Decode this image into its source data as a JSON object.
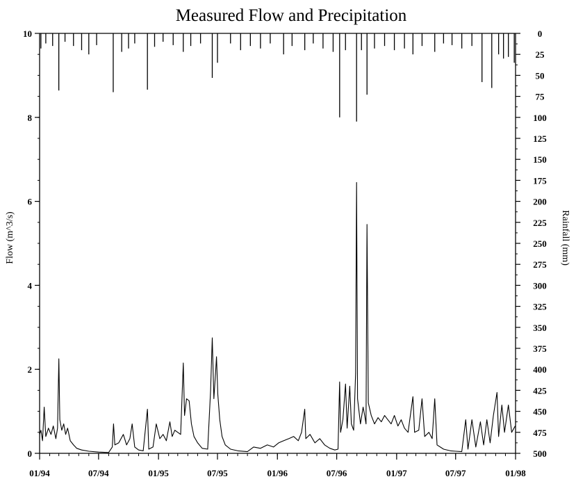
{
  "chart_data": {
    "type": "line",
    "title": "Measured Flow and Precipitation",
    "ylabel": "Flow (m^3/s)",
    "y2label": "Rainfall (mm)",
    "ylim": [
      0,
      10
    ],
    "y2lim": [
      0,
      500
    ],
    "y2_inverted": true,
    "xlim": [
      "1994-01-01",
      "1998-01-01"
    ],
    "grid": false,
    "legend": "none",
    "colors": {
      "line": "#000000",
      "bars": "#000000",
      "background": "#ffffff"
    },
    "x_ticks": [
      {
        "date": "1994-01-01",
        "label": "01/94"
      },
      {
        "date": "1994-07-01",
        "label": "07/94"
      },
      {
        "date": "1995-01-01",
        "label": "01/95"
      },
      {
        "date": "1995-07-01",
        "label": "07/95"
      },
      {
        "date": "1996-01-01",
        "label": "01/96"
      },
      {
        "date": "1996-07-01",
        "label": "07/96"
      },
      {
        "date": "1997-01-01",
        "label": "01/97"
      },
      {
        "date": "1997-07-01",
        "label": "07/97"
      },
      {
        "date": "1998-01-01",
        "label": "01/98"
      }
    ],
    "y_ticks": [
      "0",
      "2",
      "4",
      "6",
      "8",
      "10"
    ],
    "y2_ticks": [
      "0",
      "25",
      "50",
      "75",
      "100",
      "125",
      "150",
      "175",
      "200",
      "225",
      "250",
      "275",
      "300",
      "325",
      "350",
      "375",
      "400",
      "425",
      "450",
      "475",
      "500"
    ],
    "series": [
      {
        "name": "Flow",
        "kind": "line",
        "axis": "left",
        "units": "m^3/s",
        "points": [
          [
            "1994-01-01",
            0.45
          ],
          [
            "1994-01-05",
            0.55
          ],
          [
            "1994-01-10",
            0.3
          ],
          [
            "1994-01-15",
            1.1
          ],
          [
            "1994-01-20",
            0.4
          ],
          [
            "1994-01-28",
            0.6
          ],
          [
            "1994-02-05",
            0.45
          ],
          [
            "1994-02-12",
            0.65
          ],
          [
            "1994-02-20",
            0.35
          ],
          [
            "1994-02-25",
            0.6
          ],
          [
            "1994-03-01",
            2.25
          ],
          [
            "1994-03-04",
            0.8
          ],
          [
            "1994-03-10",
            0.55
          ],
          [
            "1994-03-16",
            0.7
          ],
          [
            "1994-03-22",
            0.45
          ],
          [
            "1994-03-28",
            0.6
          ],
          [
            "1994-04-05",
            0.3
          ],
          [
            "1994-04-15",
            0.2
          ],
          [
            "1994-04-25",
            0.12
          ],
          [
            "1994-05-10",
            0.08
          ],
          [
            "1994-06-01",
            0.05
          ],
          [
            "1994-07-01",
            0.03
          ],
          [
            "1994-08-01",
            0.02
          ],
          [
            "1994-08-12",
            0.15
          ],
          [
            "1994-08-16",
            0.7
          ],
          [
            "1994-08-20",
            0.2
          ],
          [
            "1994-09-01",
            0.25
          ],
          [
            "1994-09-15",
            0.45
          ],
          [
            "1994-09-25",
            0.2
          ],
          [
            "1994-10-05",
            0.35
          ],
          [
            "1994-10-12",
            0.7
          ],
          [
            "1994-10-20",
            0.15
          ],
          [
            "1994-11-01",
            0.08
          ],
          [
            "1994-11-15",
            0.06
          ],
          [
            "1994-11-28",
            1.05
          ],
          [
            "1994-12-02",
            0.1
          ],
          [
            "1994-12-15",
            0.15
          ],
          [
            "1994-12-25",
            0.7
          ],
          [
            "1995-01-05",
            0.35
          ],
          [
            "1995-01-15",
            0.45
          ],
          [
            "1995-01-25",
            0.3
          ],
          [
            "1995-02-05",
            0.75
          ],
          [
            "1995-02-12",
            0.4
          ],
          [
            "1995-02-20",
            0.55
          ],
          [
            "1995-03-01",
            0.5
          ],
          [
            "1995-03-10",
            0.45
          ],
          [
            "1995-03-18",
            2.15
          ],
          [
            "1995-03-22",
            0.9
          ],
          [
            "1995-03-28",
            1.3
          ],
          [
            "1995-04-05",
            1.25
          ],
          [
            "1995-04-12",
            0.7
          ],
          [
            "1995-04-20",
            0.4
          ],
          [
            "1995-05-01",
            0.25
          ],
          [
            "1995-05-15",
            0.12
          ],
          [
            "1995-06-01",
            0.1
          ],
          [
            "1995-06-10",
            1.5
          ],
          [
            "1995-06-15",
            2.75
          ],
          [
            "1995-06-20",
            1.3
          ],
          [
            "1995-06-25",
            1.9
          ],
          [
            "1995-06-28",
            2.3
          ],
          [
            "1995-07-02",
            1.4
          ],
          [
            "1995-07-08",
            0.8
          ],
          [
            "1995-07-15",
            0.4
          ],
          [
            "1995-07-25",
            0.2
          ],
          [
            "1995-08-10",
            0.1
          ],
          [
            "1995-09-01",
            0.06
          ],
          [
            "1995-10-01",
            0.04
          ],
          [
            "1995-10-20",
            0.15
          ],
          [
            "1995-11-10",
            0.12
          ],
          [
            "1995-12-01",
            0.2
          ],
          [
            "1995-12-20",
            0.15
          ],
          [
            "1996-01-05",
            0.25
          ],
          [
            "1996-01-20",
            0.3
          ],
          [
            "1996-02-05",
            0.35
          ],
          [
            "1996-02-20",
            0.4
          ],
          [
            "1996-03-05",
            0.3
          ],
          [
            "1996-03-15",
            0.5
          ],
          [
            "1996-03-25",
            1.05
          ],
          [
            "1996-03-28",
            0.35
          ],
          [
            "1996-04-10",
            0.45
          ],
          [
            "1996-04-25",
            0.25
          ],
          [
            "1996-05-10",
            0.35
          ],
          [
            "1996-05-25",
            0.2
          ],
          [
            "1996-06-10",
            0.12
          ],
          [
            "1996-06-25",
            0.08
          ],
          [
            "1996-07-05",
            0.1
          ],
          [
            "1996-07-10",
            1.7
          ],
          [
            "1996-07-13",
            0.5
          ],
          [
            "1996-07-20",
            0.8
          ],
          [
            "1996-07-28",
            1.65
          ],
          [
            "1996-08-02",
            0.6
          ],
          [
            "1996-08-10",
            1.6
          ],
          [
            "1996-08-15",
            0.7
          ],
          [
            "1996-08-22",
            0.55
          ],
          [
            "1996-08-28",
            1.9
          ],
          [
            "1996-08-31",
            6.45
          ],
          [
            "1996-09-03",
            1.3
          ],
          [
            "1996-09-12",
            0.7
          ],
          [
            "1996-09-20",
            1.1
          ],
          [
            "1996-09-25",
            0.9
          ],
          [
            "1996-09-29",
            0.7
          ],
          [
            "1996-10-02",
            5.45
          ],
          [
            "1996-10-06",
            1.2
          ],
          [
            "1996-10-15",
            0.9
          ],
          [
            "1996-10-25",
            0.7
          ],
          [
            "1996-11-05",
            0.85
          ],
          [
            "1996-11-15",
            0.75
          ],
          [
            "1996-11-25",
            0.9
          ],
          [
            "1996-12-05",
            0.8
          ],
          [
            "1996-12-15",
            0.7
          ],
          [
            "1996-12-25",
            0.9
          ],
          [
            "1997-01-05",
            0.65
          ],
          [
            "1997-01-15",
            0.8
          ],
          [
            "1997-01-25",
            0.6
          ],
          [
            "1997-02-05",
            0.5
          ],
          [
            "1997-02-20",
            1.35
          ],
          [
            "1997-02-25",
            0.5
          ],
          [
            "1997-03-10",
            0.55
          ],
          [
            "1997-03-20",
            1.3
          ],
          [
            "1997-03-28",
            0.4
          ],
          [
            "1997-04-10",
            0.5
          ],
          [
            "1997-04-20",
            0.35
          ],
          [
            "1997-04-28",
            1.3
          ],
          [
            "1997-05-05",
            0.2
          ],
          [
            "1997-05-25",
            0.1
          ],
          [
            "1997-06-15",
            0.06
          ],
          [
            "1997-07-01",
            0.05
          ],
          [
            "1997-07-20",
            0.04
          ],
          [
            "1997-08-01",
            0.8
          ],
          [
            "1997-08-08",
            0.1
          ],
          [
            "1997-08-20",
            0.8
          ],
          [
            "1997-09-01",
            0.15
          ],
          [
            "1997-09-15",
            0.75
          ],
          [
            "1997-09-25",
            0.2
          ],
          [
            "1997-10-05",
            0.8
          ],
          [
            "1997-10-15",
            0.25
          ],
          [
            "1997-10-25",
            0.9
          ],
          [
            "1997-11-05",
            1.45
          ],
          [
            "1997-11-10",
            0.4
          ],
          [
            "1997-11-20",
            1.15
          ],
          [
            "1997-11-28",
            0.5
          ],
          [
            "1997-12-10",
            1.15
          ],
          [
            "1997-12-20",
            0.5
          ],
          [
            "1997-12-31",
            0.65
          ]
        ]
      },
      {
        "name": "Rainfall",
        "kind": "bar",
        "axis": "right",
        "units": "mm",
        "points": [
          [
            "1994-01-05",
            18
          ],
          [
            "1994-01-20",
            12
          ],
          [
            "1994-02-10",
            15
          ],
          [
            "1994-03-01",
            68
          ],
          [
            "1994-03-20",
            10
          ],
          [
            "1994-04-15",
            15
          ],
          [
            "1994-05-10",
            20
          ],
          [
            "1994-06-01",
            25
          ],
          [
            "1994-06-25",
            14
          ],
          [
            "1994-08-15",
            70
          ],
          [
            "1994-09-10",
            22
          ],
          [
            "1994-10-01",
            18
          ],
          [
            "1994-10-20",
            12
          ],
          [
            "1994-11-28",
            67
          ],
          [
            "1994-12-20",
            16
          ],
          [
            "1995-01-15",
            10
          ],
          [
            "1995-02-15",
            14
          ],
          [
            "1995-03-18",
            22
          ],
          [
            "1995-04-10",
            15
          ],
          [
            "1995-05-10",
            12
          ],
          [
            "1995-06-15",
            53
          ],
          [
            "1995-07-01",
            35
          ],
          [
            "1995-08-10",
            12
          ],
          [
            "1995-09-10",
            20
          ],
          [
            "1995-10-10",
            15
          ],
          [
            "1995-11-10",
            18
          ],
          [
            "1995-12-10",
            12
          ],
          [
            "1996-01-20",
            25
          ],
          [
            "1996-02-15",
            15
          ],
          [
            "1996-03-25",
            20
          ],
          [
            "1996-04-20",
            12
          ],
          [
            "1996-05-20",
            18
          ],
          [
            "1996-06-20",
            22
          ],
          [
            "1996-07-10",
            100
          ],
          [
            "1996-07-28",
            20
          ],
          [
            "1996-08-31",
            105
          ],
          [
            "1996-09-15",
            20
          ],
          [
            "1996-10-02",
            73
          ],
          [
            "1996-10-25",
            18
          ],
          [
            "1996-11-25",
            15
          ],
          [
            "1996-12-25",
            20
          ],
          [
            "1997-01-25",
            18
          ],
          [
            "1997-02-20",
            25
          ],
          [
            "1997-03-20",
            15
          ],
          [
            "1997-04-28",
            22
          ],
          [
            "1997-05-25",
            12
          ],
          [
            "1997-06-20",
            14
          ],
          [
            "1997-07-20",
            18
          ],
          [
            "1997-08-20",
            15
          ],
          [
            "1997-09-20",
            58
          ],
          [
            "1997-10-20",
            65
          ],
          [
            "1997-11-10",
            25
          ],
          [
            "1997-11-25",
            30
          ],
          [
            "1997-12-10",
            28
          ],
          [
            "1997-12-28",
            35
          ]
        ]
      }
    ]
  }
}
